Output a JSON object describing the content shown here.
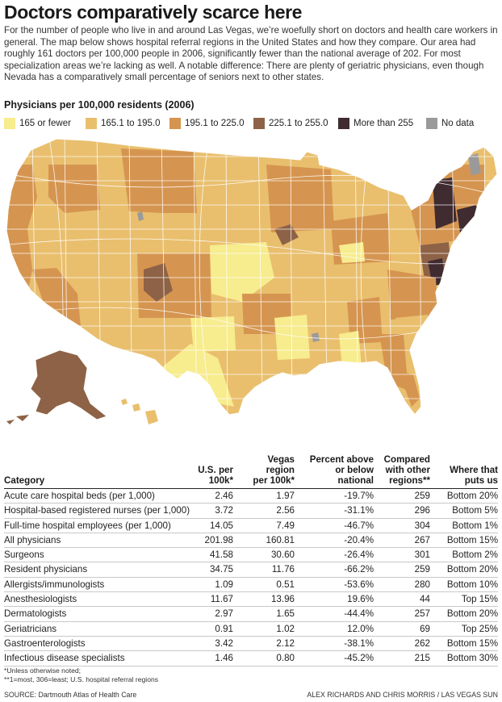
{
  "headline": "Doctors comparatively scarce here",
  "intro": "For the number of people who live in and around Las Vegas, we’re woefully short on doctors and health care workers in general. The map below shows hospital referral regions in the United States and how they compare. Our area had roughly 161 doctors per 100,000 people in 2006, significantly fewer than the national average of 202. For most specialization areas we’re lacking as well. A notable difference: There are plenty of geriatric physicians, even though Nevada has a comparatively small percentage of seniors next to other states.",
  "legend": {
    "title": "Physicians per 100,000 residents (2006)",
    "items": [
      {
        "label": "165 or fewer",
        "color": "#f7ec8e"
      },
      {
        "label": "165.1 to 195.0",
        "color": "#e9bf6e"
      },
      {
        "label": "195.1 to 225.0",
        "color": "#d59550"
      },
      {
        "label": "225.1 to 255.0",
        "color": "#8e6246"
      },
      {
        "label": "More than 255",
        "color": "#3f2b30"
      },
      {
        "label": "No data",
        "color": "#9a9a9a"
      }
    ]
  },
  "map": {
    "border_color": "#ffffff"
  },
  "table": {
    "headers": {
      "category": "Category",
      "us": [
        "U.S. per",
        "100k*"
      ],
      "vegas": [
        "Vegas",
        "region",
        "per 100k*"
      ],
      "percent": [
        "Percent above",
        "or below",
        "national"
      ],
      "compared": [
        "Compared",
        "with other",
        "regions**"
      ],
      "where": [
        "Where that",
        "puts us"
      ]
    },
    "rows": [
      {
        "category": "Acute care hospital beds (per 1,000)",
        "us": "2.46",
        "vegas": "1.97",
        "percent": "-19.7%",
        "compared": "259",
        "where": "Bottom 20%"
      },
      {
        "category": "Hospital-based registered nurses (per 1,000)",
        "us": "3.72",
        "vegas": "2.56",
        "percent": "-31.1%",
        "compared": "296",
        "where": "Bottom 5%"
      },
      {
        "category": "Full-time hospital employees (per 1,000)",
        "us": "14.05",
        "vegas": "7.49",
        "percent": "-46.7%",
        "compared": "304",
        "where": "Bottom 1%"
      },
      {
        "category": "All physicians",
        "us": "201.98",
        "vegas": "160.81",
        "percent": "-20.4%",
        "compared": "267",
        "where": "Bottom 15%"
      },
      {
        "category": "Surgeons",
        "us": "41.58",
        "vegas": "30.60",
        "percent": "-26.4%",
        "compared": "301",
        "where": "Bottom 2%"
      },
      {
        "category": "Resident physicians",
        "us": "34.75",
        "vegas": "11.76",
        "percent": "-66.2%",
        "compared": "259",
        "where": "Bottom 20%"
      },
      {
        "category": "Allergists/immunologists",
        "us": "1.09",
        "vegas": "0.51",
        "percent": "-53.6%",
        "compared": "280",
        "where": "Bottom 10%"
      },
      {
        "category": "Anesthesiologists",
        "us": "11.67",
        "vegas": "13.96",
        "percent": "19.6%",
        "compared": "44",
        "where": "Top 15%"
      },
      {
        "category": "Dermatologists",
        "us": "2.97",
        "vegas": "1.65",
        "percent": "-44.4%",
        "compared": "257",
        "where": "Bottom 20%"
      },
      {
        "category": "Geriatricians",
        "us": "0.91",
        "vegas": "1.02",
        "percent": "12.0%",
        "compared": "69",
        "where": "Top 25%"
      },
      {
        "category": "Gastroenterologists",
        "us": "3.42",
        "vegas": "2.12",
        "percent": "-38.1%",
        "compared": "262",
        "where": "Bottom 15%"
      },
      {
        "category": "Infectious disease specialists",
        "us": "1.46",
        "vegas": "0.80",
        "percent": "-45.2%",
        "compared": "215",
        "where": "Bottom 30%"
      }
    ]
  },
  "footnotes": [
    "*Unless otherwise noted;",
    "**1=most, 306=least; U.S. hospital referral regions"
  ],
  "source": "SOURCE: Dartmouth Atlas of Health Care",
  "credit": "ALEX RICHARDS AND CHRIS MORRIS / LAS VEGAS SUN"
}
